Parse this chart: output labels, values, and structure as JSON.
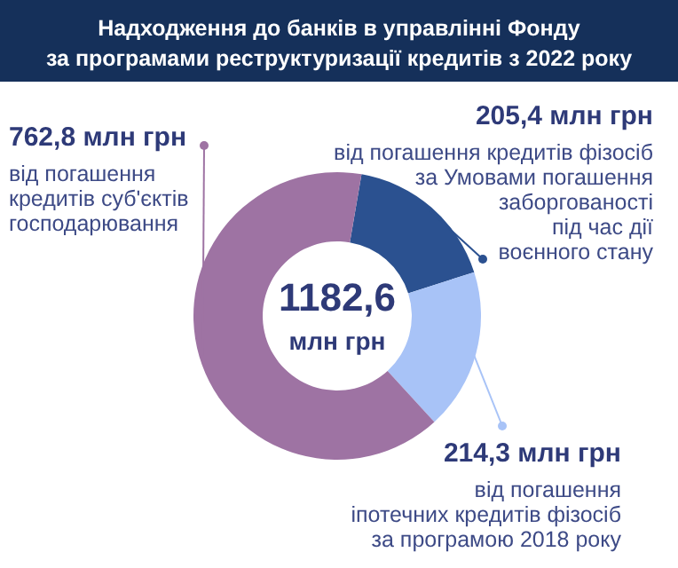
{
  "chart_data": {
    "type": "donut",
    "title": "Надходження до банків в управлінні Фонду\nза програмами реструктуризації кредитів з 2022 року",
    "categories": [
      "від погашення кредитів фізосіб\nза Умовами погашення\nзаборгованості\nпід час дії\nвоєнного стану",
      "від погашення\nіпотечних кредитів фізосіб\nза програмою 2018 року",
      "від погашення\nкредитів суб'єктів\nгосподарювання"
    ],
    "values": [
      205.4,
      214.3,
      762.8
    ],
    "value_labels": [
      "205,4 млн грн",
      "214,3 млн грн",
      "762,8 млн грн"
    ],
    "colors": [
      "#2b5190",
      "#a8c3f7",
      "#9e73a3"
    ],
    "annotations": [
      "1182,6\nмлн грн"
    ]
  }
}
